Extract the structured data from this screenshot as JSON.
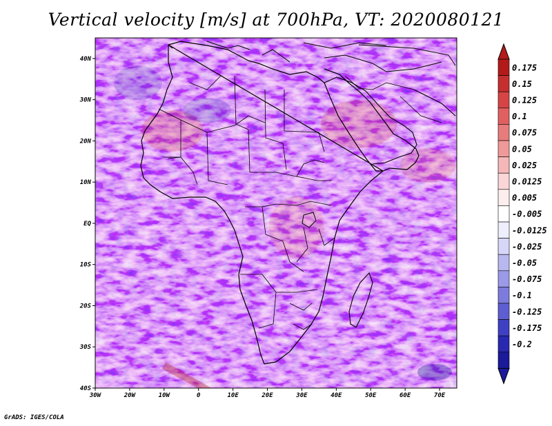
{
  "title": "Vertical velocity [m/s] at 700hPa, VT: 2020080121",
  "footer": "GrADS: IGES/COLA",
  "map": {
    "lon_range": [
      -30,
      75
    ],
    "lat_range": [
      -40,
      45
    ],
    "lat_ticks": [
      {
        "value": 40,
        "label": "40N"
      },
      {
        "value": 30,
        "label": "30N"
      },
      {
        "value": 20,
        "label": "20N"
      },
      {
        "value": 10,
        "label": "10N"
      },
      {
        "value": 0,
        "label": "EQ"
      },
      {
        "value": -10,
        "label": "10S"
      },
      {
        "value": -20,
        "label": "20S"
      },
      {
        "value": -30,
        "label": "30S"
      },
      {
        "value": -40,
        "label": "40S"
      }
    ],
    "lon_ticks": [
      {
        "value": -30,
        "label": "30W"
      },
      {
        "value": -20,
        "label": "20W"
      },
      {
        "value": -10,
        "label": "10W"
      },
      {
        "value": 0,
        "label": "0"
      },
      {
        "value": 10,
        "label": "10E"
      },
      {
        "value": 20,
        "label": "20E"
      },
      {
        "value": 30,
        "label": "30E"
      },
      {
        "value": 40,
        "label": "40E"
      },
      {
        "value": 50,
        "label": "50E"
      },
      {
        "value": 60,
        "label": "60E"
      },
      {
        "value": 70,
        "label": "70E"
      }
    ]
  },
  "colorbar": {
    "labels": [
      "0.175",
      "0.15",
      "0.125",
      "0.1",
      "0.075",
      "0.05",
      "0.025",
      "0.0125",
      "0.005",
      "-0.005",
      "-0.0125",
      "-0.025",
      "-0.05",
      "-0.075",
      "-0.1",
      "-0.125",
      "-0.175",
      "-0.2"
    ],
    "colors": [
      "#b31a1a",
      "#c62f2f",
      "#d54545",
      "#e06060",
      "#e87c7c",
      "#ef9999",
      "#f5b7b7",
      "#fad6d6",
      "#fdeeee",
      "#ffffff",
      "#eeeefd",
      "#d6d6f8",
      "#b8b8f0",
      "#9a9ae8",
      "#7c7cde",
      "#5e5ed2",
      "#4040c4",
      "#2828b0",
      "#1a1a9a"
    ],
    "top_color": "#b31a1a",
    "bottom_color": "#1a1a9a"
  }
}
